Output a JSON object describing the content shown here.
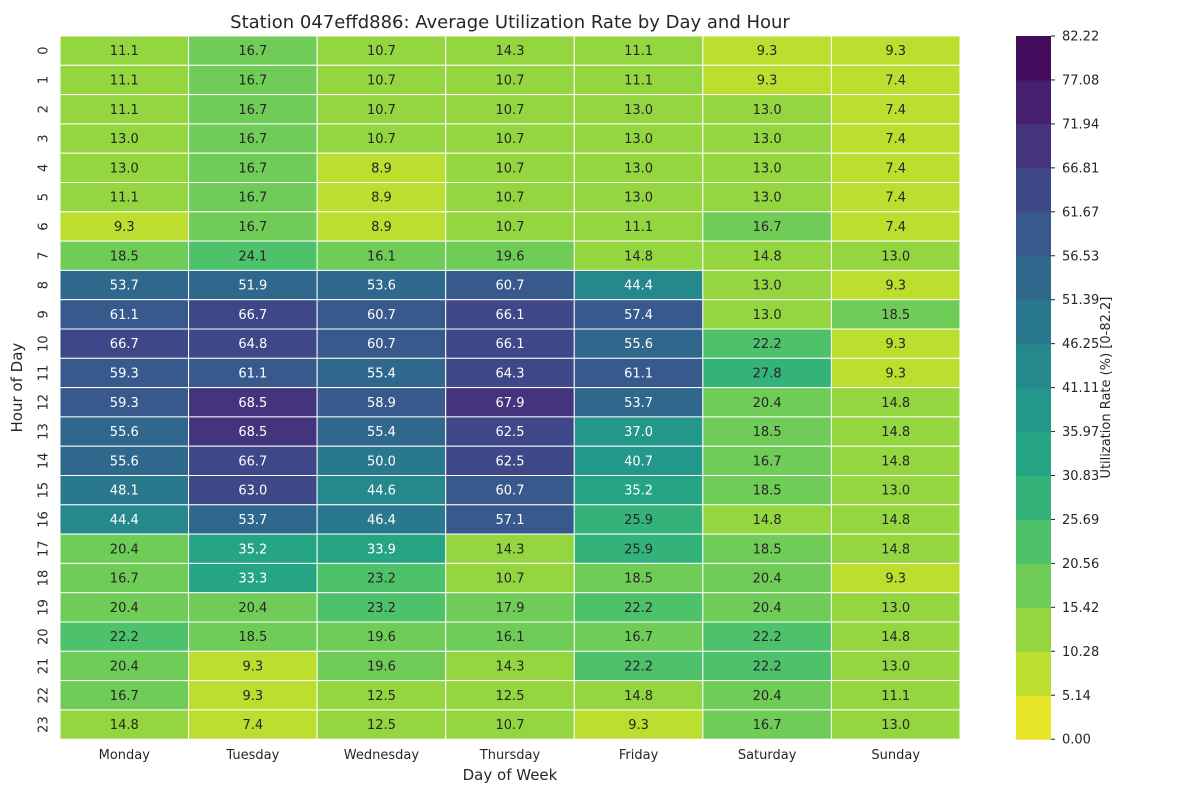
{
  "chart_data": {
    "type": "heatmap",
    "title": "Station 047effd886: Average Utilization Rate by Day and Hour",
    "xlabel": "Day of Week",
    "ylabel": "Hour of Day",
    "x_categories": [
      "Monday",
      "Tuesday",
      "Wednesday",
      "Thursday",
      "Friday",
      "Saturday",
      "Sunday"
    ],
    "y_categories": [
      "0",
      "1",
      "2",
      "3",
      "4",
      "5",
      "6",
      "7",
      "8",
      "9",
      "10",
      "11",
      "12",
      "13",
      "14",
      "15",
      "16",
      "17",
      "18",
      "19",
      "20",
      "21",
      "22",
      "23"
    ],
    "values": [
      [
        11.1,
        16.7,
        10.7,
        14.3,
        11.1,
        9.3,
        9.3
      ],
      [
        11.1,
        16.7,
        10.7,
        10.7,
        11.1,
        9.3,
        7.4
      ],
      [
        11.1,
        16.7,
        10.7,
        10.7,
        13.0,
        13.0,
        7.4
      ],
      [
        13.0,
        16.7,
        10.7,
        10.7,
        13.0,
        13.0,
        7.4
      ],
      [
        13.0,
        16.7,
        8.9,
        10.7,
        13.0,
        13.0,
        7.4
      ],
      [
        11.1,
        16.7,
        8.9,
        10.7,
        13.0,
        13.0,
        7.4
      ],
      [
        9.3,
        16.7,
        8.9,
        10.7,
        11.1,
        16.7,
        7.4
      ],
      [
        18.5,
        24.1,
        16.1,
        19.6,
        14.8,
        14.8,
        13.0
      ],
      [
        53.7,
        51.9,
        53.6,
        60.7,
        44.4,
        13.0,
        9.3
      ],
      [
        61.1,
        66.7,
        60.7,
        66.1,
        57.4,
        13.0,
        18.5
      ],
      [
        66.7,
        64.8,
        60.7,
        66.1,
        55.6,
        22.2,
        9.3
      ],
      [
        59.3,
        61.1,
        55.4,
        64.3,
        61.1,
        27.8,
        9.3
      ],
      [
        59.3,
        68.5,
        58.9,
        67.9,
        53.7,
        20.4,
        14.8
      ],
      [
        55.6,
        68.5,
        55.4,
        62.5,
        37.0,
        18.5,
        14.8
      ],
      [
        55.6,
        66.7,
        50.0,
        62.5,
        40.7,
        16.7,
        14.8
      ],
      [
        48.1,
        63.0,
        44.6,
        60.7,
        35.2,
        18.5,
        13.0
      ],
      [
        44.4,
        53.7,
        46.4,
        57.1,
        25.9,
        14.8,
        14.8
      ],
      [
        20.4,
        35.2,
        33.9,
        14.3,
        25.9,
        18.5,
        14.8
      ],
      [
        16.7,
        33.3,
        23.2,
        10.7,
        18.5,
        20.4,
        9.3
      ],
      [
        20.4,
        20.4,
        23.2,
        17.9,
        22.2,
        20.4,
        13.0
      ],
      [
        22.2,
        18.5,
        19.6,
        16.1,
        16.7,
        22.2,
        14.8
      ],
      [
        20.4,
        9.3,
        19.6,
        14.3,
        22.2,
        22.2,
        13.0
      ],
      [
        16.7,
        9.3,
        12.5,
        12.5,
        14.8,
        20.4,
        11.1
      ],
      [
        14.8,
        7.4,
        12.5,
        10.7,
        9.3,
        16.7,
        13.0
      ]
    ],
    "colorbar": {
      "label": "Utilization Rate (%) [0-82.2]",
      "min": 0,
      "max": 82.22,
      "ticks": [
        "0.00",
        "5.14",
        "10.28",
        "15.42",
        "20.56",
        "25.69",
        "30.83",
        "35.97",
        "41.11",
        "46.25",
        "51.39",
        "56.53",
        "61.67",
        "66.81",
        "71.94",
        "77.08",
        "82.22"
      ],
      "colormap": "viridis_r",
      "bins": 16
    },
    "grid": false
  }
}
